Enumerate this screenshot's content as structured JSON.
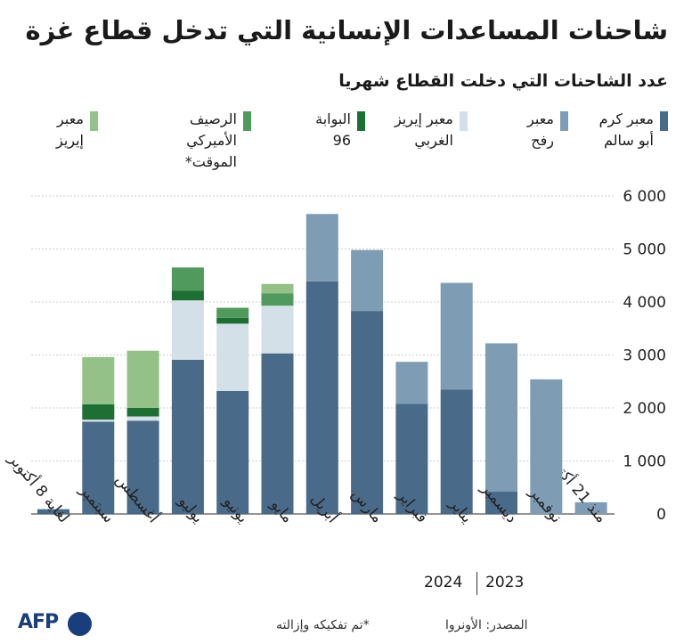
{
  "header": {
    "title": "شاحنات المساعدات الإنسانية التي تدخل قطاع غزة",
    "subtitle": "عدد الشاحنات التي دخلت القطاع شهريا"
  },
  "legend": [
    {
      "label": "معبر كرم\nأبو سالم",
      "color": "#4a6a8a"
    },
    {
      "label": "معبر\nرفح",
      "color": "#7f9cb5"
    },
    {
      "label": "معبر إيريز\nالغربي",
      "color": "#d3e0e8"
    },
    {
      "label": "البوابة\n96",
      "color": "#1f6f35"
    },
    {
      "label": "الرصيف الأميركي\nالموقت*",
      "color": "#4f9a5c"
    },
    {
      "label": "معبر\nإيريز",
      "color": "#93c187"
    }
  ],
  "chart_data": {
    "type": "bar",
    "stacked": true,
    "ylim": [
      0,
      6000
    ],
    "yticks": [
      "0",
      "1 000",
      "2 000",
      "3 000",
      "4 000",
      "5 000",
      "6 000"
    ],
    "ytick_values": [
      0,
      1000,
      2000,
      3000,
      4000,
      5000,
      6000
    ],
    "grid": true,
    "categories": [
      "منذ 21 أكتوبر",
      "نوفمبر",
      "ديسمبر",
      "يناير",
      "فبراير",
      "مارس",
      "أبريل",
      "مايو",
      "يونيو",
      "يوليو",
      "أغسطس",
      "سبتمبر",
      "لغاية 8 أكتوبر"
    ],
    "series": [
      {
        "name": "معبر كرم أبو سالم",
        "color": "#4a6a8a",
        "values": [
          0,
          0,
          420,
          2350,
          2080,
          3830,
          4390,
          3030,
          2320,
          2910,
          1760,
          1740,
          90
        ]
      },
      {
        "name": "معبر رفح",
        "color": "#7f9cb5",
        "values": [
          220,
          2540,
          2800,
          2010,
          790,
          1150,
          1270,
          0,
          0,
          0,
          0,
          0,
          0
        ]
      },
      {
        "name": "معبر إيريز الغربي",
        "color": "#d3e0e8",
        "values": [
          0,
          0,
          0,
          0,
          0,
          0,
          0,
          900,
          1270,
          1120,
          80,
          40,
          0
        ]
      },
      {
        "name": "البوابة 96",
        "color": "#1f6f35",
        "values": [
          0,
          0,
          0,
          0,
          0,
          0,
          0,
          0,
          110,
          180,
          160,
          290,
          0
        ]
      },
      {
        "name": "الرصيف الأميركي الموقت*",
        "color": "#4f9a5c",
        "values": [
          0,
          0,
          0,
          0,
          0,
          0,
          0,
          230,
          190,
          440,
          0,
          0,
          0
        ]
      },
      {
        "name": "معبر إيريز",
        "color": "#93c187",
        "values": [
          0,
          0,
          0,
          0,
          0,
          0,
          0,
          180,
          0,
          0,
          1080,
          890,
          0
        ]
      }
    ],
    "year_labels": {
      "left": "2024",
      "right": "2023"
    }
  },
  "footer": {
    "source": "المصدر: الأونروا",
    "note": "*تم تفكيكه وإزالته",
    "logo": "AFP"
  }
}
